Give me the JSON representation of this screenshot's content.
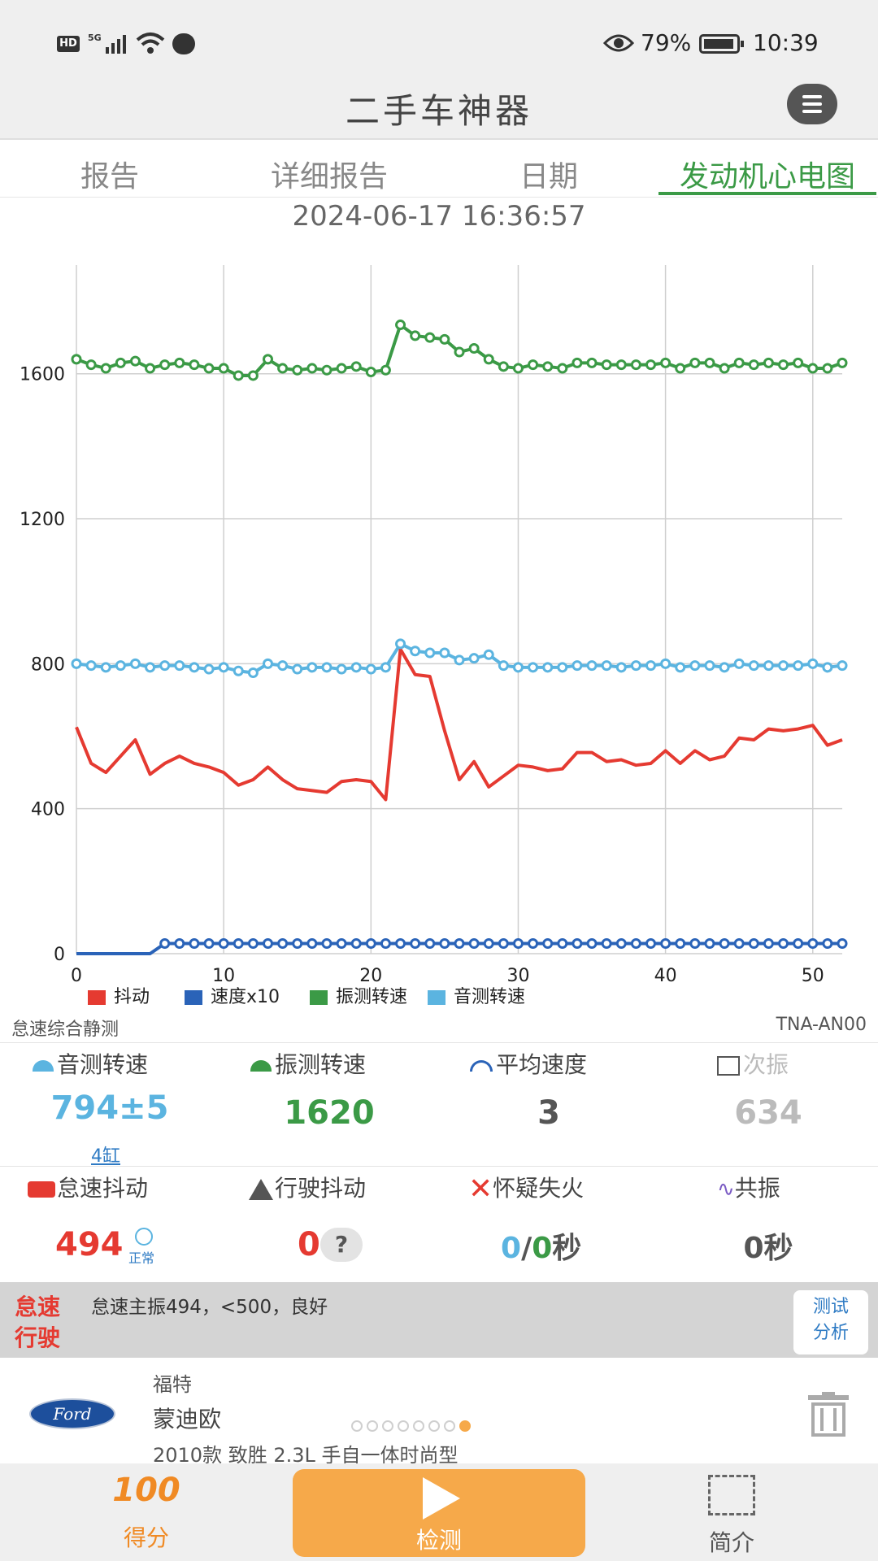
{
  "status": {
    "network": "5G",
    "battery": "79%",
    "time": "10:39"
  },
  "header": {
    "title": "二手车神器"
  },
  "tabs": [
    {
      "label": "报告",
      "active": false
    },
    {
      "label": "详细报告",
      "active": false
    },
    {
      "label": "日期",
      "active": false
    },
    {
      "label": "发动机心电图",
      "active": true
    }
  ],
  "timestamp": "2024-06-17 16:36:57",
  "chart_data": {
    "type": "line",
    "x_ticks": [
      0,
      10,
      20,
      30,
      40,
      50
    ],
    "y_ticks": [
      0,
      400,
      800,
      1200,
      1600
    ],
    "xlim": [
      0,
      52
    ],
    "ylim": [
      0,
      1900
    ],
    "grid": true,
    "legend_position": "bottom-left",
    "series": [
      {
        "name": "抖动",
        "color": "#e53a31",
        "values": [
          625,
          525,
          500,
          545,
          590,
          495,
          525,
          545,
          525,
          515,
          500,
          465,
          480,
          515,
          480,
          455,
          450,
          445,
          475,
          480,
          475,
          425,
          840,
          770,
          765,
          615,
          480,
          530,
          460,
          490,
          520,
          515,
          505,
          510,
          555,
          555,
          530,
          535,
          520,
          525,
          560,
          525,
          560,
          535,
          545,
          595,
          590,
          620,
          615,
          620,
          630,
          575,
          590
        ]
      },
      {
        "name": "速度x10",
        "color": "#2a63b8",
        "values": [
          0,
          0,
          0,
          0,
          0,
          0,
          28,
          28,
          28,
          28,
          28,
          28,
          28,
          28,
          28,
          28,
          28,
          28,
          28,
          28,
          28,
          28,
          28,
          28,
          28,
          28,
          28,
          28,
          28,
          28,
          28,
          28,
          28,
          28,
          28,
          28,
          28,
          28,
          28,
          28,
          28,
          28,
          28,
          28,
          28,
          28,
          28,
          28,
          28,
          28,
          28,
          28,
          28
        ]
      },
      {
        "name": "振测转速",
        "color": "#3b9a46",
        "values": [
          1640,
          1625,
          1615,
          1630,
          1635,
          1615,
          1625,
          1630,
          1625,
          1615,
          1615,
          1595,
          1595,
          1640,
          1615,
          1610,
          1615,
          1610,
          1615,
          1620,
          1605,
          1610,
          1735,
          1705,
          1700,
          1695,
          1660,
          1670,
          1640,
          1620,
          1615,
          1625,
          1620,
          1615,
          1630,
          1630,
          1625,
          1625,
          1625,
          1625,
          1630,
          1615,
          1630,
          1630,
          1615,
          1630,
          1625,
          1630,
          1625,
          1630,
          1615,
          1615,
          1630
        ]
      },
      {
        "name": "音测转速",
        "color": "#5bb4e0",
        "values": [
          800,
          795,
          790,
          795,
          800,
          790,
          795,
          795,
          790,
          785,
          790,
          780,
          775,
          800,
          795,
          785,
          790,
          790,
          785,
          790,
          785,
          790,
          855,
          835,
          830,
          830,
          810,
          815,
          825,
          795,
          790,
          790,
          790,
          790,
          795,
          795,
          795,
          790,
          795,
          795,
          800,
          790,
          795,
          795,
          790,
          800,
          795,
          795,
          795,
          795,
          800,
          790,
          795
        ]
      }
    ]
  },
  "test_mode": "怠速综合静测",
  "device": "TNA-AN00",
  "metrics_row1": [
    {
      "label": "音测转速",
      "value": "794±5",
      "sub": "4缸",
      "color": "#5bb4e0",
      "icon": "gauge-icon"
    },
    {
      "label": "振测转速",
      "value": "1620",
      "color": "#3b9a46",
      "icon": "gauge-icon"
    },
    {
      "label": "平均速度",
      "value": "3",
      "color": "#555555",
      "icon": "speedometer-icon"
    },
    {
      "label": "次振",
      "value": "634",
      "color": "#bbbbbb",
      "icon": "waveform-icon"
    }
  ],
  "metrics_row2": {
    "idle_shake": {
      "label": "怠速抖动",
      "value": "494",
      "badge": "正常"
    },
    "drive_shake": {
      "label": "行驶抖动",
      "value": "0",
      "help": "?"
    },
    "misfire": {
      "label": "怀疑失火",
      "value_a": "0",
      "sep": "/",
      "value_b": "0",
      "unit": "秒"
    },
    "resonance": {
      "label": "共振",
      "value": "0秒"
    }
  },
  "summary": {
    "tag1": "怠速",
    "tag2": "行驶",
    "text": "怠速主振494，<500，良好",
    "button_line1": "测试",
    "button_line2": "分析"
  },
  "car": {
    "logo_text": "Ford",
    "brand": "福特",
    "model": "蒙迪欧",
    "trim": "2010款 致胜 2.3L 手自一体时尚型"
  },
  "bottom_nav": {
    "score_icon_text": "100",
    "score": "得分",
    "detect": "检测",
    "intro": "简介"
  }
}
